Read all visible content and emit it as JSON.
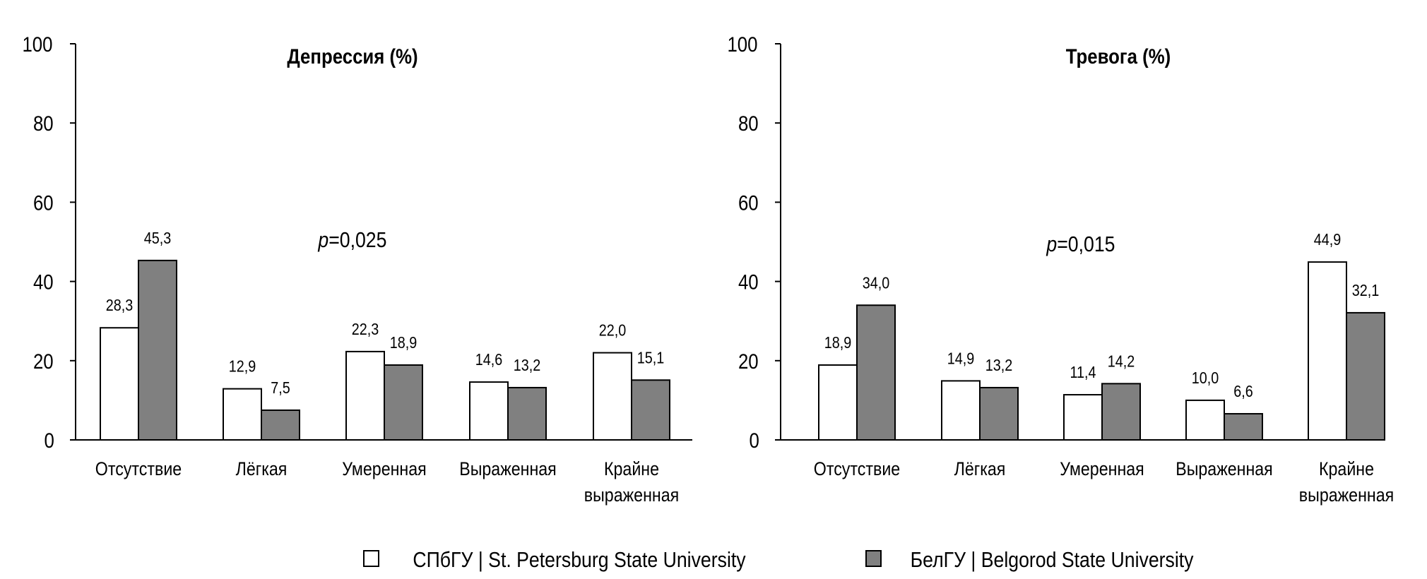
{
  "chart_data": [
    {
      "type": "bar",
      "title": "Депрессия (%)",
      "annotation": {
        "p_label": "p",
        "p_value": "=0,025"
      },
      "categories": [
        [
          "Отсутствие"
        ],
        [
          "Лёгкая"
        ],
        [
          "Умеренная"
        ],
        [
          "Выраженная"
        ],
        [
          "Крайне",
          "выраженная"
        ]
      ],
      "series": [
        {
          "name": "СПбГУ | St. Petersburg State University",
          "color": "#ffffff",
          "values": [
            28.3,
            12.9,
            22.3,
            14.6,
            22.0
          ],
          "labels": [
            "28,3",
            "12,9",
            "22,3",
            "14,6",
            "22,0"
          ]
        },
        {
          "name": "БелГУ | Belgorod State University",
          "color": "#808080",
          "values": [
            45.3,
            7.5,
            18.9,
            13.2,
            15.1
          ],
          "labels": [
            "45,3",
            "7,5",
            "18,9",
            "13,2",
            "15,1"
          ]
        }
      ],
      "ylim": [
        0,
        100
      ],
      "yticks": [
        "0",
        "20",
        "40",
        "60",
        "80",
        "100"
      ],
      "grid": false
    },
    {
      "type": "bar",
      "title": "Тревога (%)",
      "annotation": {
        "p_label": "p",
        "p_value": "=0,015"
      },
      "categories": [
        [
          "Отсутствие"
        ],
        [
          "Лёгкая"
        ],
        [
          "Умеренная"
        ],
        [
          "Выраженная"
        ],
        [
          "Крайне",
          "выраженная"
        ]
      ],
      "series": [
        {
          "name": "СПбГУ | St. Petersburg State University",
          "color": "#ffffff",
          "values": [
            18.9,
            14.9,
            11.4,
            10.0,
            44.9
          ],
          "labels": [
            "18,9",
            "14,9",
            "11,4",
            "10,0",
            "44,9"
          ]
        },
        {
          "name": "БелГУ | Belgorod State University",
          "color": "#808080",
          "values": [
            34.0,
            13.2,
            14.2,
            6.6,
            32.1
          ],
          "labels": [
            "34,0",
            "13,2",
            "14,2",
            "6,6",
            "32,1"
          ]
        }
      ],
      "ylim": [
        0,
        100
      ],
      "yticks": [
        "0",
        "20",
        "40",
        "60",
        "80",
        "100"
      ],
      "grid": false
    }
  ],
  "legend": {
    "position": "bottom",
    "items": [
      {
        "label": "СПбГУ | St. Petersburg State University",
        "color": "#ffffff"
      },
      {
        "label": "БелГУ | Belgorod State University",
        "color": "#808080"
      }
    ]
  }
}
